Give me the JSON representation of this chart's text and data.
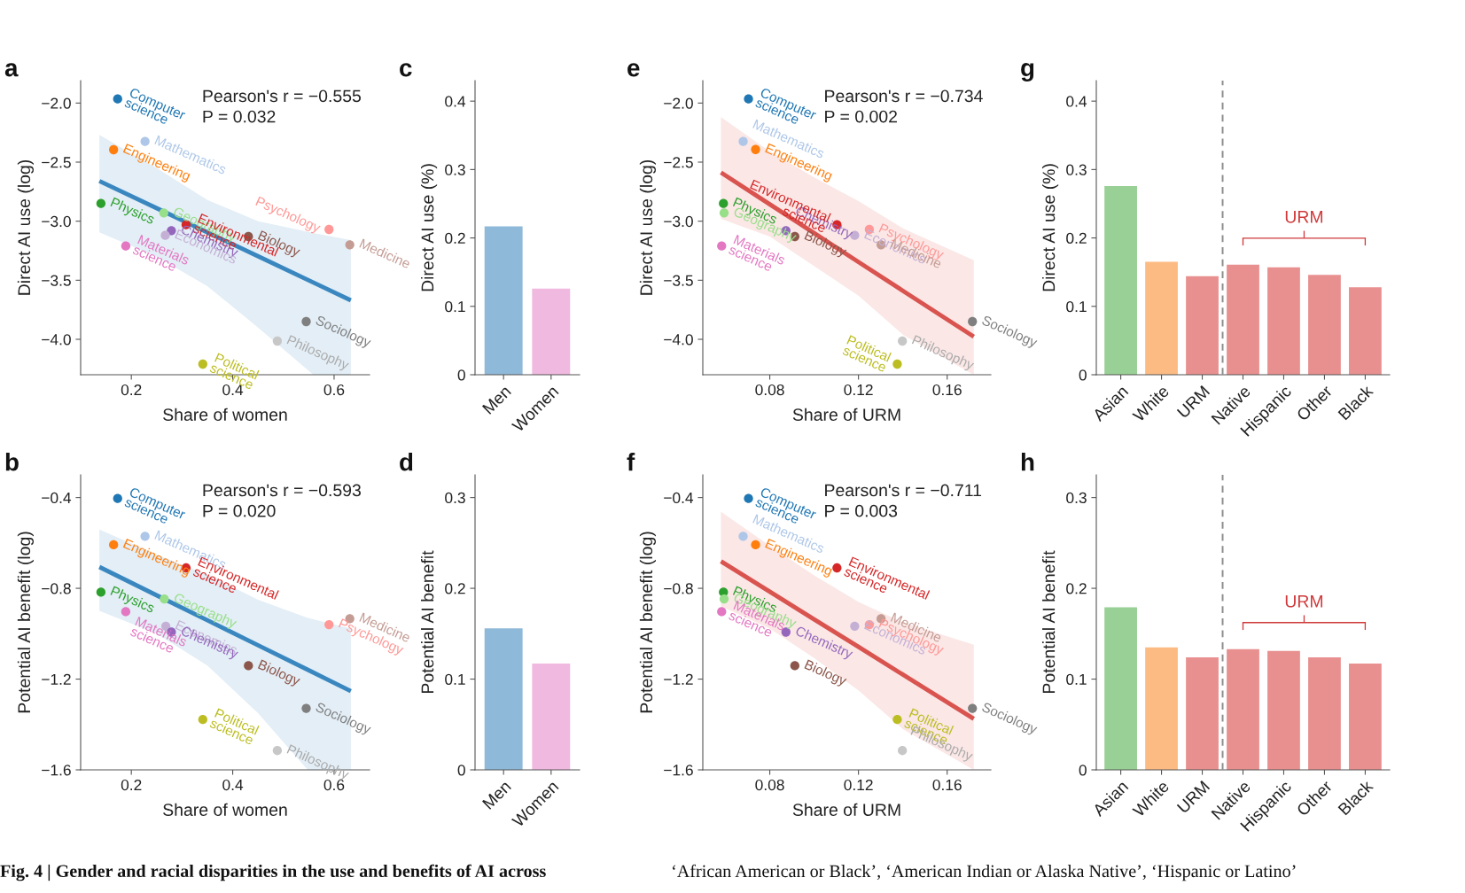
{
  "chart_data": [
    {
      "type": "scatter",
      "title": "a",
      "xlabel": "Share of women",
      "ylabel": "Direct AI use (log)",
      "marker": "circle",
      "xlim": [
        0.1,
        0.67
      ],
      "xticks": [
        0.2,
        0.4,
        0.6
      ],
      "ylim": [
        -4.3,
        -1.81
      ],
      "yticks": [
        {
          "value": -2.0,
          "label": "−2.0"
        },
        {
          "value": -2.5,
          "label": "−2.5"
        },
        {
          "value": -3.0,
          "label": "−3.0"
        },
        {
          "value": -3.5,
          "label": "−3.5"
        },
        {
          "value": -4.0,
          "label": "−4.0"
        }
      ],
      "annotations": [
        "Pearson's r = −0.555",
        "P = 0.032"
      ],
      "series": [
        {
          "type": "line",
          "marker": "none",
          "color": "#3a87c0",
          "x": [
            0.137,
            0.25,
            0.35,
            0.45,
            0.559,
            0.633
          ],
          "values": [
            -2.66,
            -2.89,
            -3.094,
            -3.297,
            -3.519,
            -3.67
          ],
          "lower": [
            -3.095,
            -3.3,
            -3.55,
            -3.9,
            -4.3,
            -4.3
          ],
          "upper": [
            -2.27,
            -2.55,
            -2.82,
            -3.0,
            -3.1,
            -3.16
          ]
        },
        {
          "name": "Computer science",
          "color": "#1f77b4",
          "x": [
            0.173
          ],
          "values": [
            -1.965
          ]
        },
        {
          "name": "Mathematics",
          "color": "#aec7e8",
          "x": [
            0.227
          ],
          "values": [
            -2.325
          ]
        },
        {
          "name": "Engineering",
          "color": "#ff7f0e",
          "x": [
            0.165
          ],
          "values": [
            -2.395
          ]
        },
        {
          "name": "Geography",
          "color": "#98df8a",
          "x": [
            0.264
          ],
          "values": [
            -2.93
          ]
        },
        {
          "name": "Physics",
          "color": "#2ca02c",
          "x": [
            0.14
          ],
          "values": [
            -2.85
          ]
        },
        {
          "name": "Environmental science",
          "color": "#d62728",
          "x": [
            0.308
          ],
          "values": [
            -3.03
          ]
        },
        {
          "name": "Chemistry",
          "color": "#9467bd",
          "x": [
            0.279
          ],
          "values": [
            -3.08
          ]
        },
        {
          "name": "Economics",
          "color": "#c5b0d5",
          "x": [
            0.267
          ],
          "values": [
            -3.12
          ]
        },
        {
          "name": "Materials science",
          "color": "#e377c2",
          "x": [
            0.189
          ],
          "values": [
            -3.21
          ]
        },
        {
          "name": "Biology",
          "color": "#8c564b",
          "x": [
            0.431
          ],
          "values": [
            -3.13
          ]
        },
        {
          "name": "Psychology",
          "color": "#ff9896",
          "x": [
            0.59
          ],
          "values": [
            -3.07
          ]
        },
        {
          "name": "Medicine",
          "color": "#c49c94",
          "x": [
            0.631
          ],
          "values": [
            -3.2
          ]
        },
        {
          "name": "Sociology",
          "color": "#7f7f7f",
          "x": [
            0.545
          ],
          "values": [
            -3.85
          ]
        },
        {
          "name": "Philosophy",
          "color": "#c7c7c7",
          "x": [
            0.488
          ],
          "values": [
            -4.015
          ]
        },
        {
          "name": "Political science",
          "color": "#bcbd22",
          "x": [
            0.341
          ],
          "values": [
            -4.21
          ]
        }
      ]
    },
    {
      "type": "bar",
      "title": "c",
      "ylabel": "Direct AI use (%)",
      "categories": [
        "Men",
        "Women"
      ],
      "values": [
        0.217,
        0.126
      ],
      "colors": [
        "#8fb9d9",
        "#f0b9df"
      ],
      "ylim": [
        0,
        0.43
      ],
      "yticks": [
        0,
        0.1,
        0.2,
        0.3,
        0.4
      ]
    },
    {
      "type": "scatter",
      "title": "e",
      "xlabel": "Share of URM",
      "ylabel": "Direct AI use (log)",
      "marker": "circle",
      "xlim": [
        0.0498,
        0.1797
      ],
      "xticks": [
        0.08,
        0.12,
        0.16
      ],
      "ylim": [
        -4.3,
        -1.81
      ],
      "yticks": [
        {
          "value": -2.0,
          "label": "−2.0"
        },
        {
          "value": -2.5,
          "label": "−2.5"
        },
        {
          "value": -3.0,
          "label": "−3.0"
        },
        {
          "value": -3.5,
          "label": "−3.5"
        },
        {
          "value": -4.0,
          "label": "−4.0"
        }
      ],
      "annotations": [
        "Pearson's r = −0.734",
        "P = 0.002"
      ],
      "series": [
        {
          "type": "line",
          "marker": "none",
          "color": "#d9534f",
          "x": [
            0.058,
            0.08,
            0.1,
            0.12,
            0.14,
            0.172
          ],
          "values": [
            -2.588,
            -2.857,
            -3.101,
            -3.345,
            -3.589,
            -3.978
          ],
          "lower": [
            -2.98,
            -3.13,
            -3.38,
            -3.63,
            -3.96,
            -4.3
          ],
          "upper": [
            -2.12,
            -2.41,
            -2.63,
            -2.83,
            -3.06,
            -3.33
          ]
        },
        {
          "name": "Computer science",
          "color": "#1f77b4",
          "x": [
            0.0704
          ],
          "values": [
            -1.965
          ]
        },
        {
          "name": "Mathematics",
          "color": "#aec7e8",
          "x": [
            0.068
          ],
          "values": [
            -2.325
          ]
        },
        {
          "name": "Engineering",
          "color": "#ff7f0e",
          "x": [
            0.0736
          ],
          "values": [
            -2.393
          ]
        },
        {
          "name": "Physics",
          "color": "#2ca02c",
          "x": [
            0.0591
          ],
          "values": [
            -2.85
          ]
        },
        {
          "name": "Geography",
          "color": "#98df8a",
          "x": [
            0.0594
          ],
          "values": [
            -2.93
          ]
        },
        {
          "name": "Materials science",
          "color": "#e377c2",
          "x": [
            0.0583
          ],
          "values": [
            -3.21
          ]
        },
        {
          "name": "Chemistry",
          "color": "#9467bd",
          "x": [
            0.0873
          ],
          "values": [
            -3.08
          ]
        },
        {
          "name": "Biology",
          "color": "#8c564b",
          "x": [
            0.0913
          ],
          "values": [
            -3.13
          ]
        },
        {
          "name": "Environmental science",
          "color": "#d62728",
          "x": [
            0.1103
          ],
          "values": [
            -3.03
          ]
        },
        {
          "name": "Economics",
          "color": "#c5b0d5",
          "x": [
            0.1183
          ],
          "values": [
            -3.12
          ]
        },
        {
          "name": "Psychology",
          "color": "#ff9896",
          "x": [
            0.1249
          ],
          "values": [
            -3.07
          ]
        },
        {
          "name": "Medicine",
          "color": "#c49c94",
          "x": [
            0.1302
          ],
          "values": [
            -3.2
          ]
        },
        {
          "name": "Sociology",
          "color": "#7f7f7f",
          "x": [
            0.1714
          ],
          "values": [
            -3.85
          ]
        },
        {
          "name": "Philosophy",
          "color": "#c7c7c7",
          "x": [
            0.1398
          ],
          "values": [
            -4.015
          ]
        },
        {
          "name": "Political science",
          "color": "#bcbd22",
          "x": [
            0.1375
          ],
          "values": [
            -4.21
          ]
        }
      ]
    },
    {
      "type": "bar",
      "title": "g",
      "ylabel": "Direct AI use (%)",
      "categories": [
        "Asian",
        "White",
        "URM",
        "Native",
        "Hispanic",
        "Other",
        "Black"
      ],
      "values": [
        0.276,
        0.165,
        0.144,
        0.161,
        0.157,
        0.146,
        0.128
      ],
      "colors": [
        "#98d095",
        "#fdbb84",
        "#e8908f",
        "#e8908f",
        "#e8908f",
        "#e8908f",
        "#e8908f"
      ],
      "ylim": [
        0,
        0.43
      ],
      "yticks": [
        0,
        0.1,
        0.2,
        0.3,
        0.4
      ],
      "annotations": [
        "URM"
      ]
    },
    {
      "type": "scatter",
      "title": "b",
      "xlabel": "Share of women",
      "ylabel": "Potential AI benefit (log)",
      "marker": "circle",
      "xlim": [
        0.1,
        0.67
      ],
      "xticks": [
        0.2,
        0.4,
        0.6
      ],
      "ylim": [
        -1.6,
        -0.3
      ],
      "yticks": [
        {
          "value": -0.4,
          "label": "−0.4"
        },
        {
          "value": -0.8,
          "label": "−0.8"
        },
        {
          "value": -1.2,
          "label": "−1.2"
        },
        {
          "value": -1.6,
          "label": "−1.6"
        }
      ],
      "annotations": [
        "Pearson's r = −0.593",
        "P = 0.020"
      ],
      "series": [
        {
          "type": "line",
          "marker": "none",
          "color": "#3a87c0",
          "x": [
            0.137,
            0.25,
            0.35,
            0.45,
            0.548,
            0.633
          ],
          "values": [
            -0.706,
            -0.831,
            -0.941,
            -1.051,
            -1.159,
            -1.253
          ],
          "lower": [
            -0.899,
            -1.0,
            -1.14,
            -1.35,
            -1.6,
            -1.6
          ],
          "upper": [
            -0.541,
            -0.651,
            -0.74,
            -0.85,
            -0.93,
            -0.977
          ]
        },
        {
          "name": "Computer science",
          "color": "#1f77b4",
          "x": [
            0.173
          ],
          "values": [
            -0.404
          ]
        },
        {
          "name": "Mathematics",
          "color": "#aec7e8",
          "x": [
            0.227
          ],
          "values": [
            -0.571
          ]
        },
        {
          "name": "Engineering",
          "color": "#ff7f0e",
          "x": [
            0.165
          ],
          "values": [
            -0.608
          ]
        },
        {
          "name": "Environmental science",
          "color": "#d62728",
          "x": [
            0.308
          ],
          "values": [
            -0.71
          ]
        },
        {
          "name": "Physics",
          "color": "#2ca02c",
          "x": [
            0.14
          ],
          "values": [
            -0.817
          ]
        },
        {
          "name": "Geography",
          "color": "#98df8a",
          "x": [
            0.265
          ],
          "values": [
            -0.847
          ]
        },
        {
          "name": "Materials science",
          "color": "#e377c2",
          "x": [
            0.189
          ],
          "values": [
            -0.903
          ]
        },
        {
          "name": "Economics",
          "color": "#c5b0d5",
          "x": [
            0.268
          ],
          "values": [
            -0.967
          ]
        },
        {
          "name": "Chemistry",
          "color": "#9467bd",
          "x": [
            0.279
          ],
          "values": [
            -0.993
          ]
        },
        {
          "name": "Biology",
          "color": "#8c564b",
          "x": [
            0.431
          ],
          "values": [
            -1.141
          ]
        },
        {
          "name": "Psychology",
          "color": "#ff9896",
          "x": [
            0.59
          ],
          "values": [
            -0.96
          ]
        },
        {
          "name": "Medicine",
          "color": "#c49c94",
          "x": [
            0.631
          ],
          "values": [
            -0.934
          ]
        },
        {
          "name": "Sociology",
          "color": "#7f7f7f",
          "x": [
            0.545
          ],
          "values": [
            -1.329
          ]
        },
        {
          "name": "Political science",
          "color": "#bcbd22",
          "x": [
            0.341
          ],
          "values": [
            -1.378
          ]
        },
        {
          "name": "Philosophy",
          "color": "#c7c7c7",
          "x": [
            0.488
          ],
          "values": [
            -1.515
          ]
        }
      ]
    },
    {
      "type": "bar",
      "title": "d",
      "ylabel": "Potential AI benefit",
      "categories": [
        "Men",
        "Women"
      ],
      "values": [
        0.156,
        0.117
      ],
      "colors": [
        "#8fb9d9",
        "#f0b9df"
      ],
      "ylim": [
        0,
        0.325
      ],
      "yticks": [
        0,
        0.1,
        0.2,
        0.3
      ]
    },
    {
      "type": "scatter",
      "title": "f",
      "xlabel": "Share of URM",
      "ylabel": "Potential AI benefit (log)",
      "marker": "circle",
      "xlim": [
        0.0498,
        0.1797
      ],
      "xticks": [
        0.08,
        0.12,
        0.16
      ],
      "ylim": [
        -1.6,
        -0.3
      ],
      "yticks": [
        {
          "value": -0.4,
          "label": "−0.4"
        },
        {
          "value": -0.8,
          "label": "−0.8"
        },
        {
          "value": -1.2,
          "label": "−1.2"
        },
        {
          "value": -1.6,
          "label": "−1.6"
        }
      ],
      "annotations": [
        "Pearson's r = −0.711",
        "P = 0.003"
      ],
      "series": [
        {
          "type": "line",
          "marker": "none",
          "color": "#d9534f",
          "x": [
            0.058,
            0.08,
            0.1,
            0.12,
            0.14,
            0.172
          ],
          "values": [
            -0.681,
            -0.815,
            -0.937,
            -1.058,
            -1.18,
            -1.375
          ],
          "lower": [
            -0.879,
            -0.977,
            -1.107,
            -1.25,
            -1.42,
            -1.6
          ],
          "upper": [
            -0.463,
            -0.612,
            -0.743,
            -0.86,
            -0.95,
            -1.049
          ]
        },
        {
          "name": "Computer science",
          "color": "#1f77b4",
          "x": [
            0.0704
          ],
          "values": [
            -0.404
          ]
        },
        {
          "name": "Mathematics",
          "color": "#aec7e8",
          "x": [
            0.068
          ],
          "values": [
            -0.571
          ]
        },
        {
          "name": "Engineering",
          "color": "#ff7f0e",
          "x": [
            0.0736
          ],
          "values": [
            -0.608
          ]
        },
        {
          "name": "Environmental science",
          "color": "#d62728",
          "x": [
            0.1103
          ],
          "values": [
            -0.71
          ]
        },
        {
          "name": "Physics",
          "color": "#2ca02c",
          "x": [
            0.0591
          ],
          "values": [
            -0.817
          ]
        },
        {
          "name": "Geography",
          "color": "#98df8a",
          "x": [
            0.0594
          ],
          "values": [
            -0.847
          ]
        },
        {
          "name": "Materials science",
          "color": "#e377c2",
          "x": [
            0.0583
          ],
          "values": [
            -0.903
          ]
        },
        {
          "name": "Chemistry",
          "color": "#9467bd",
          "x": [
            0.0873
          ],
          "values": [
            -0.993
          ]
        },
        {
          "name": "Biology",
          "color": "#8c564b",
          "x": [
            0.0913
          ],
          "values": [
            -1.141
          ]
        },
        {
          "name": "Economics",
          "color": "#c5b0d5",
          "x": [
            0.1183
          ],
          "values": [
            -0.967
          ]
        },
        {
          "name": "Psychology",
          "color": "#ff9896",
          "x": [
            0.1249
          ],
          "values": [
            -0.96
          ]
        },
        {
          "name": "Medicine",
          "color": "#c49c94",
          "x": [
            0.1302
          ],
          "values": [
            -0.934
          ]
        },
        {
          "name": "Sociology",
          "color": "#7f7f7f",
          "x": [
            0.1714
          ],
          "values": [
            -1.329
          ]
        },
        {
          "name": "Political science",
          "color": "#bcbd22",
          "x": [
            0.1375
          ],
          "values": [
            -1.378
          ]
        },
        {
          "name": "Philosophy",
          "color": "#c7c7c7",
          "x": [
            0.1398
          ],
          "values": [
            -1.515
          ]
        }
      ]
    },
    {
      "type": "bar",
      "title": "h",
      "ylabel": "Potential AI benefit",
      "categories": [
        "Asian",
        "White",
        "URM",
        "Native",
        "Hispanic",
        "Other",
        "Black"
      ],
      "values": [
        0.179,
        0.135,
        0.124,
        0.133,
        0.131,
        0.124,
        0.117
      ],
      "colors": [
        "#98d095",
        "#fdbb84",
        "#e8908f",
        "#e8908f",
        "#e8908f",
        "#e8908f",
        "#e8908f"
      ],
      "ylim": [
        0,
        0.325
      ],
      "yticks": [
        0,
        0.1,
        0.2,
        0.3
      ],
      "annotations": [
        "URM"
      ]
    },
    {
      "type": "other",
      "annotations": [
        "Fig. 4 | Gender and racial disparities in the use and benefits of AI across",
        "‘African American or Black’, ‘American Indian or Alaska Native’, ‘Hispanic or Latino’"
      ]
    }
  ]
}
